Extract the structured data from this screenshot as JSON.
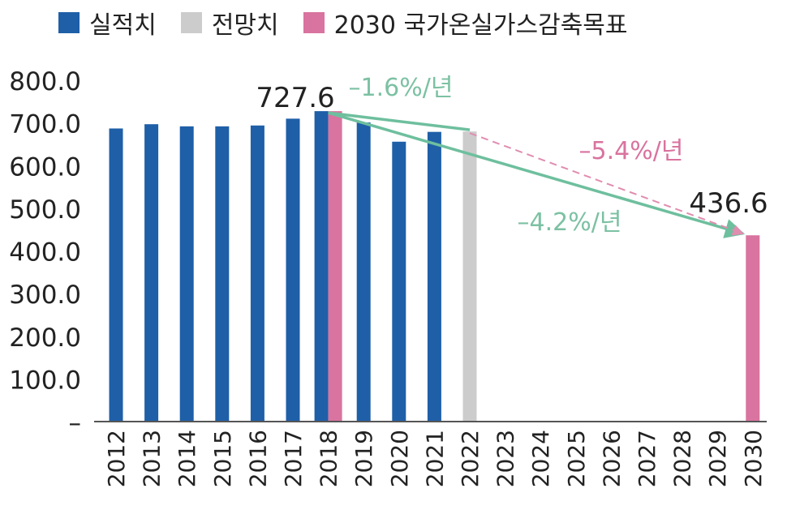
{
  "chart_data": {
    "type": "bar",
    "categories": [
      "2012",
      "2013",
      "2014",
      "2015",
      "2016",
      "2017",
      "2018",
      "2019",
      "2020",
      "2021",
      "2022",
      "2023",
      "2024",
      "2025",
      "2026",
      "2027",
      "2028",
      "2029",
      "2030"
    ],
    "series": [
      {
        "name": "실적치",
        "color": "#1f5fa8",
        "values": [
          687,
          697,
          692,
          692,
          694,
          710,
          727.6,
          701,
          656,
          679,
          null,
          null,
          null,
          null,
          null,
          null,
          null,
          null,
          null
        ]
      },
      {
        "name": "전망치",
        "color": "#cccccc",
        "values": [
          null,
          null,
          null,
          null,
          null,
          null,
          null,
          null,
          null,
          null,
          680,
          null,
          null,
          null,
          null,
          null,
          null,
          null,
          null
        ]
      },
      {
        "name": "2030 국가온실가스감축목표",
        "color": "#d9739f",
        "values": [
          null,
          null,
          null,
          null,
          null,
          null,
          727.6,
          null,
          null,
          null,
          null,
          null,
          null,
          null,
          null,
          null,
          null,
          null,
          436.6
        ]
      }
    ],
    "yticks": [
      "800.0",
      "700.0",
      "600.0",
      "500.0",
      "400.0",
      "300.0",
      "200.0",
      "100.0",
      "–"
    ],
    "ylim": [
      0,
      800
    ],
    "data_labels": [
      {
        "text": "727.6",
        "category": "2018"
      },
      {
        "text": "436.6",
        "category": "2030"
      }
    ],
    "annotations": [
      {
        "text": "–1.6%/년",
        "color": "#7cc1a3"
      },
      {
        "text": "–5.4%/년",
        "color": "#d9739f"
      },
      {
        "text": "–4.2%/년",
        "color": "#7cc1a3"
      }
    ],
    "trend_lines": [
      {
        "from": [
          "2018",
          727.6
        ],
        "to": [
          "2022",
          680
        ],
        "style": "solid",
        "color": "#6ebf9e"
      },
      {
        "from": [
          "2018",
          727.6
        ],
        "to": [
          "2030",
          436.6
        ],
        "style": "solid",
        "color": "#6ebf9e"
      },
      {
        "from": [
          "2022",
          680
        ],
        "to": [
          "2030",
          436.6
        ],
        "style": "dashed",
        "color": "#e08db0"
      }
    ],
    "axis_color": "#555555",
    "legend_position": "top"
  }
}
